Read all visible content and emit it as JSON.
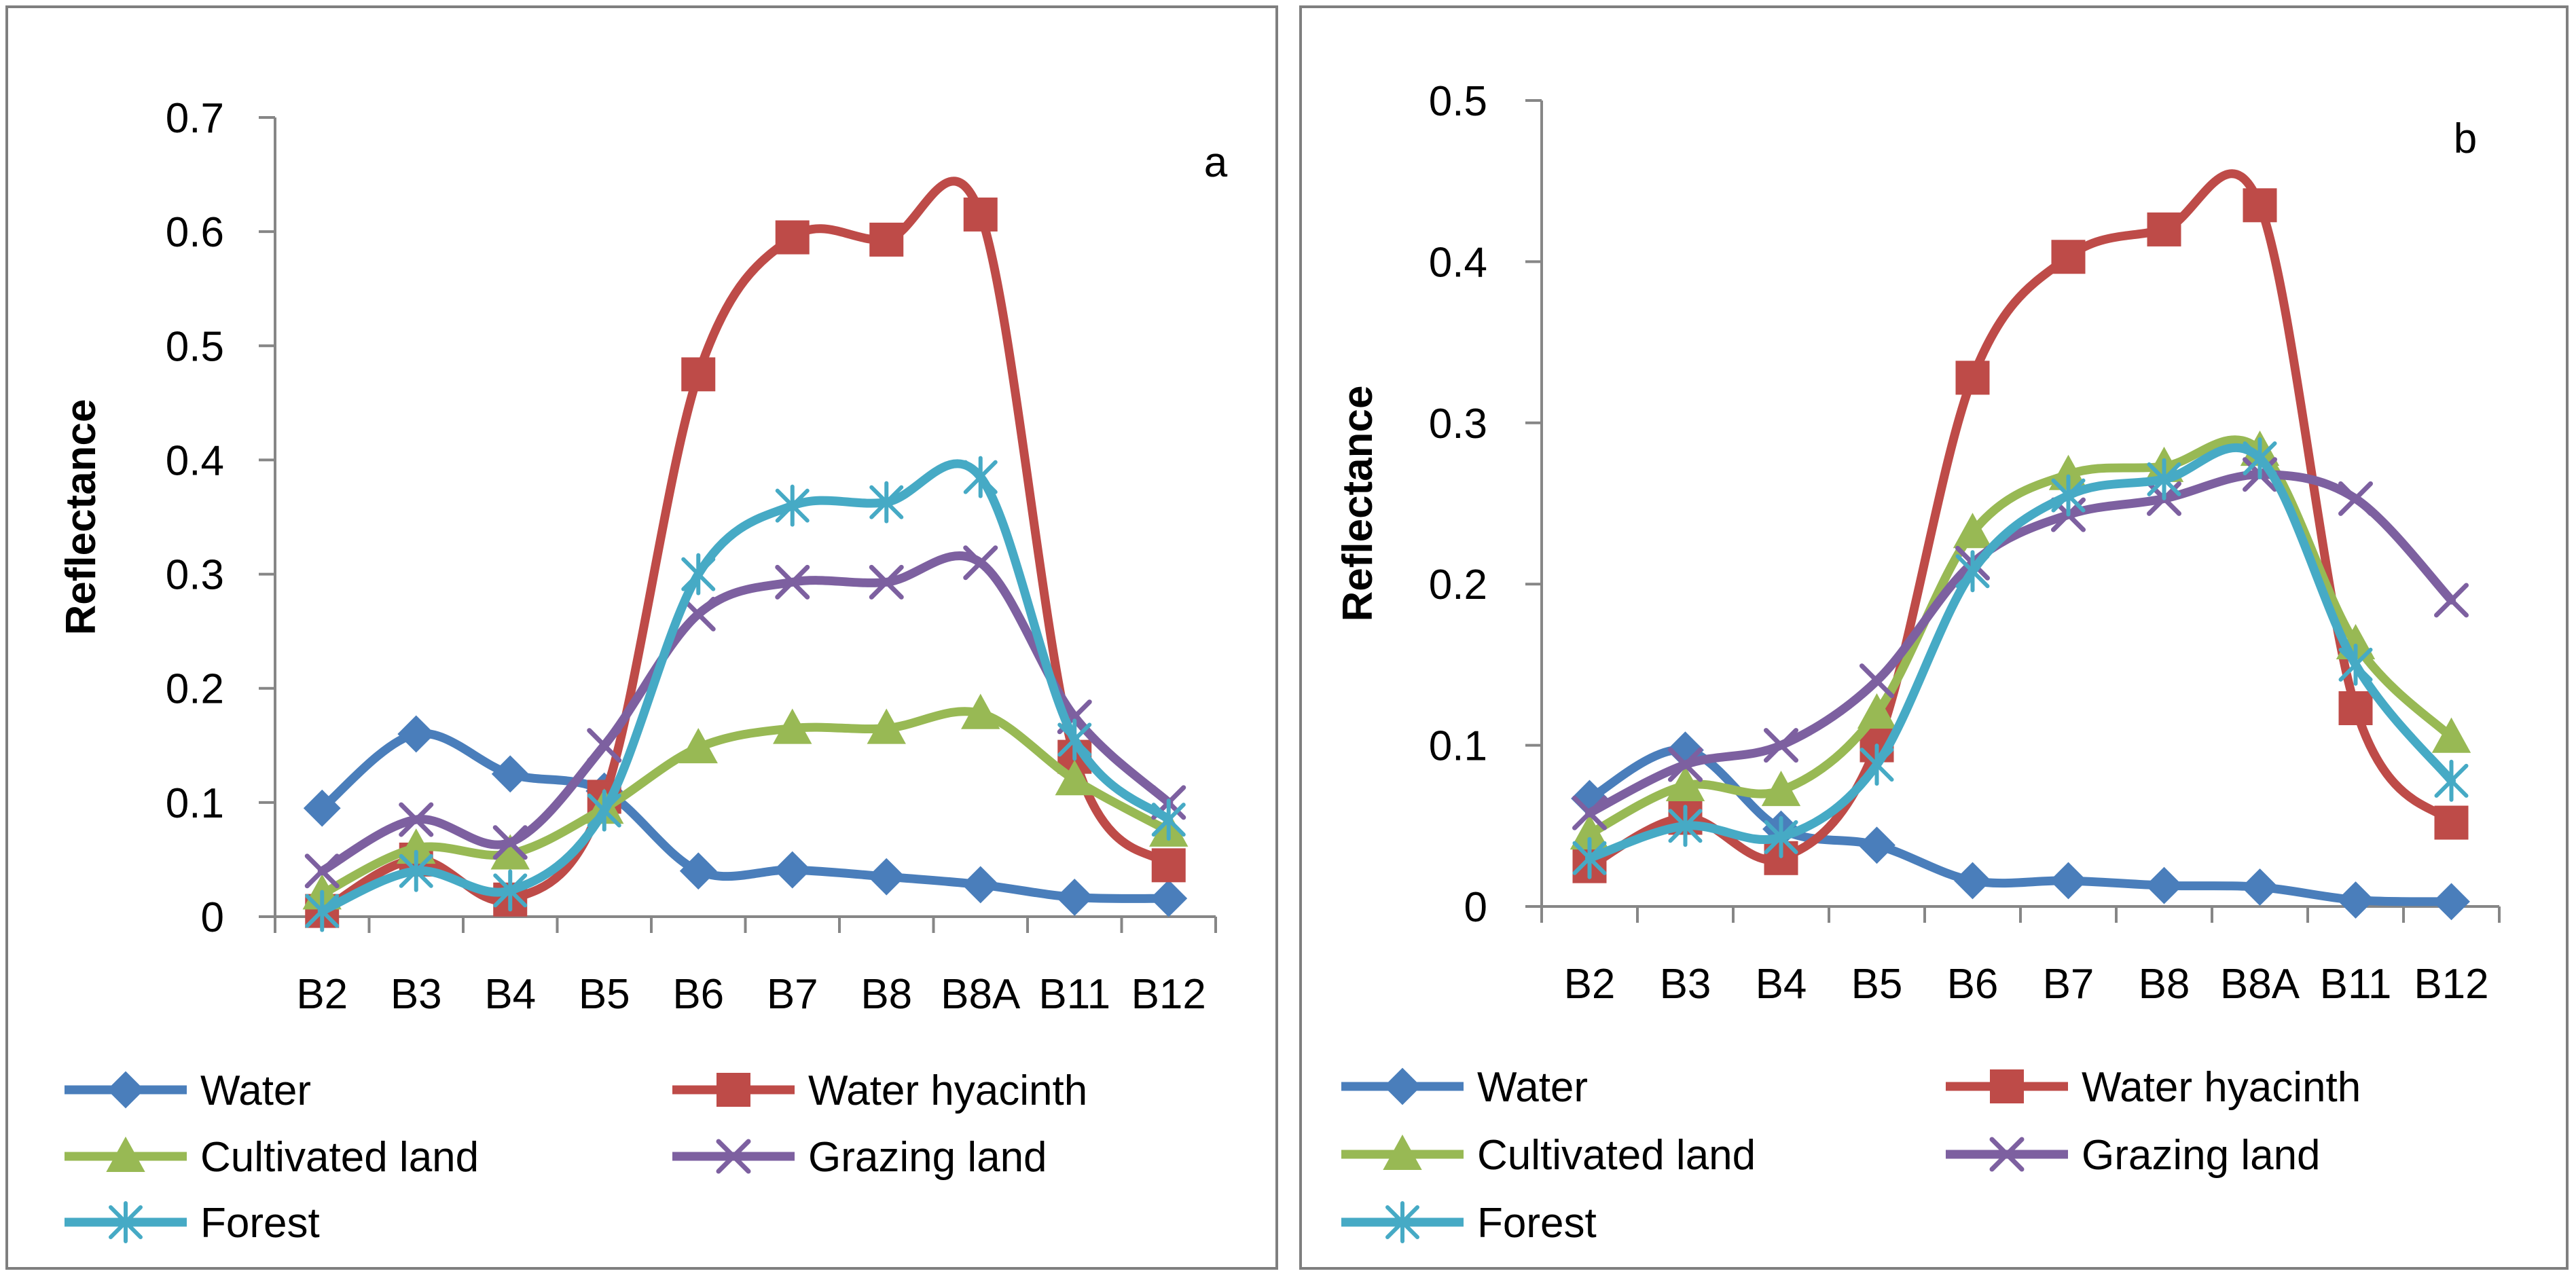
{
  "styles": {
    "colors": {
      "Water": "#4A7EBB",
      "Water hyacinth": "#BE4B48",
      "Cultivated land": "#98B954",
      "Grazing land": "#7D60A0",
      "Forest": "#46AAC5"
    },
    "axis_color": "#868686",
    "frame_color": "#7f7f7f",
    "markers": {
      "Water": "diamond",
      "Water hyacinth": "square",
      "Cultivated land": "triangle",
      "Grazing land": "x",
      "Forest": "star"
    }
  },
  "chart_data": [
    {
      "panel_label": "a",
      "type": "line",
      "ylabel": "Reflectance",
      "xlabel": "",
      "ylim": [
        0,
        0.7
      ],
      "yticks": [
        "0",
        "0.1",
        "0.2",
        "0.3",
        "0.4",
        "0.5",
        "0.6",
        "0.7"
      ],
      "categories": [
        "B2",
        "B3",
        "B4",
        "B5",
        "B6",
        "B7",
        "B8",
        "B8A",
        "B11",
        "B12"
      ],
      "legend": [
        "Water",
        "Water hyacinth",
        "Cultivated land",
        "Grazing land",
        "Forest"
      ],
      "series": [
        {
          "name": "Water",
          "values": [
            0.095,
            0.16,
            0.125,
            0.11,
            0.04,
            0.041,
            0.035,
            0.028,
            0.017,
            0.016
          ]
        },
        {
          "name": "Water hyacinth",
          "values": [
            0.005,
            0.05,
            0.015,
            0.105,
            0.475,
            0.595,
            0.593,
            0.615,
            0.14,
            0.045
          ]
        },
        {
          "name": "Cultivated land",
          "values": [
            0.02,
            0.06,
            0.055,
            0.095,
            0.148,
            0.165,
            0.165,
            0.178,
            0.12,
            0.075
          ]
        },
        {
          "name": "Grazing land",
          "values": [
            0.04,
            0.085,
            0.065,
            0.15,
            0.265,
            0.293,
            0.293,
            0.31,
            0.175,
            0.1
          ]
        },
        {
          "name": "Forest",
          "values": [
            0.005,
            0.04,
            0.023,
            0.093,
            0.3,
            0.36,
            0.363,
            0.385,
            0.155,
            0.085
          ]
        }
      ]
    },
    {
      "panel_label": "b",
      "type": "line",
      "ylabel": "Reflectance",
      "xlabel": "",
      "ylim": [
        0,
        0.5
      ],
      "yticks": [
        "0",
        "0.1",
        "0.2",
        "0.3",
        "0.4",
        "0.5"
      ],
      "categories": [
        "B2",
        "B3",
        "B4",
        "B5",
        "B6",
        "B7",
        "B8",
        "B8A",
        "B11",
        "B12"
      ],
      "legend": [
        "Water",
        "Water hyacinth",
        "Cultivated land",
        "Grazing land",
        "Forest"
      ],
      "series": [
        {
          "name": "Water",
          "values": [
            0.067,
            0.097,
            0.048,
            0.038,
            0.016,
            0.016,
            0.013,
            0.012,
            0.004,
            0.003
          ]
        },
        {
          "name": "Water hyacinth",
          "values": [
            0.025,
            0.055,
            0.03,
            0.1,
            0.328,
            0.403,
            0.42,
            0.435,
            0.123,
            0.052
          ]
        },
        {
          "name": "Cultivated land",
          "values": [
            0.045,
            0.075,
            0.072,
            0.12,
            0.232,
            0.268,
            0.273,
            0.283,
            0.163,
            0.105
          ]
        },
        {
          "name": "Grazing land",
          "values": [
            0.058,
            0.088,
            0.1,
            0.14,
            0.213,
            0.243,
            0.253,
            0.268,
            0.253,
            0.19
          ]
        },
        {
          "name": "Forest",
          "values": [
            0.03,
            0.05,
            0.043,
            0.088,
            0.208,
            0.255,
            0.265,
            0.278,
            0.15,
            0.078
          ]
        }
      ]
    }
  ]
}
